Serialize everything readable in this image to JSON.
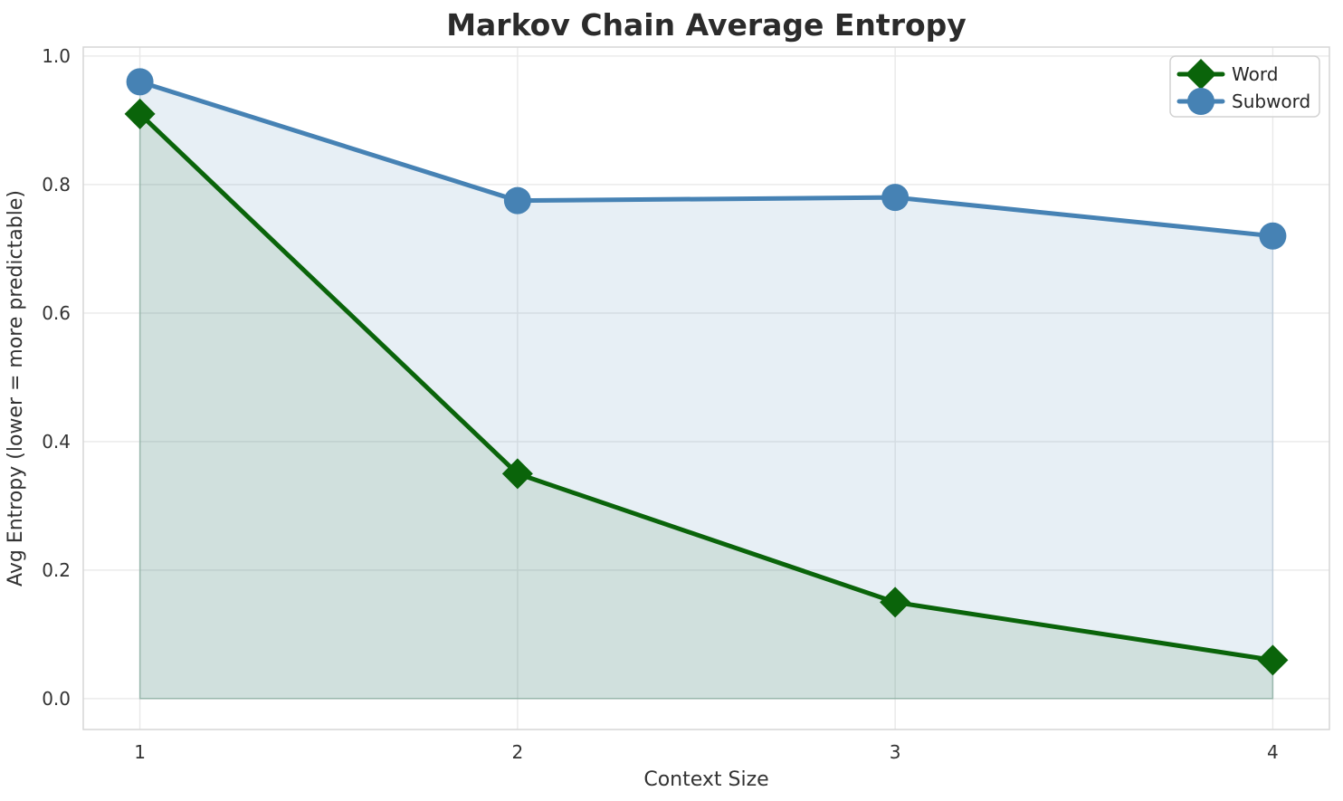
{
  "title": "Markov Chain Average Entropy",
  "chart_data": {
    "type": "line",
    "title": "Markov Chain Average Entropy",
    "xlabel": "Context Size",
    "ylabel": "Avg Entropy (lower = more predictable)",
    "x": [
      1,
      2,
      3,
      4
    ],
    "series": [
      {
        "name": "Word",
        "values": [
          0.91,
          0.35,
          0.15,
          0.06
        ],
        "color": "#0a640a",
        "marker": "diamond",
        "fill_opacity": 0.1
      },
      {
        "name": "Subword",
        "values": [
          0.96,
          0.775,
          0.78,
          0.72
        ],
        "color": "#4682b4",
        "marker": "circle",
        "fill_opacity": 0.13
      }
    ],
    "xticks": [
      1,
      2,
      3,
      4
    ],
    "yticks": [
      0.0,
      0.2,
      0.4,
      0.6,
      0.8,
      1.0
    ],
    "xlim": [
      0.85,
      4.15
    ],
    "ylim": [
      -0.048,
      1.014
    ],
    "grid": true,
    "area_fill": true,
    "legend_position": "upper right",
    "colors": {
      "grid": "#e9e9e9",
      "spine": "#d6d6d6",
      "tick_label": "#333333",
      "axis_label": "#333333",
      "title": "#2b2b2b",
      "legend_border": "#d2d2d2",
      "legend_text": "#262626",
      "background": "#ffffff"
    }
  }
}
